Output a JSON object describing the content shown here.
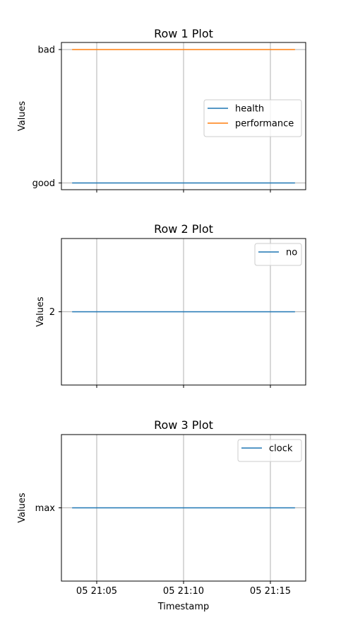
{
  "figure": {
    "xlabel": "Timestamp",
    "xticks": [
      "05 21:05",
      "05 21:10",
      "05 21:15"
    ]
  },
  "chart_data": [
    {
      "type": "line",
      "title": "Row 1 Plot",
      "ylabel": "Values",
      "y_categories": [
        "good",
        "bad"
      ],
      "x_range": [
        "21:03:35",
        "21:16:25"
      ],
      "xticks": [
        "05 21:05",
        "05 21:10",
        "05 21:15"
      ],
      "grid": true,
      "legend_position": "center-right",
      "series": [
        {
          "name": "health",
          "color": "#1f77b4",
          "x": [
            "21:03:35",
            "21:16:25"
          ],
          "y": [
            "good",
            "good"
          ]
        },
        {
          "name": "performance",
          "color": "#ff7f0e",
          "x": [
            "21:03:35",
            "21:16:25"
          ],
          "y": [
            "bad",
            "bad"
          ]
        }
      ]
    },
    {
      "type": "line",
      "title": "Row 2 Plot",
      "ylabel": "Values",
      "y_categories": [
        "2"
      ],
      "x_range": [
        "21:03:35",
        "21:16:25"
      ],
      "xticks": [
        "05 21:05",
        "05 21:10",
        "05 21:15"
      ],
      "grid": true,
      "legend_position": "top-right",
      "series": [
        {
          "name": "no",
          "color": "#1f77b4",
          "x": [
            "21:03:35",
            "21:16:25"
          ],
          "y": [
            "2",
            "2"
          ]
        }
      ]
    },
    {
      "type": "line",
      "title": "Row 3 Plot",
      "ylabel": "Values",
      "y_categories": [
        "max"
      ],
      "x_range": [
        "21:03:35",
        "21:16:25"
      ],
      "xticks": [
        "05 21:05",
        "05 21:10",
        "05 21:15"
      ],
      "grid": true,
      "legend_position": "top-right",
      "series": [
        {
          "name": "clock",
          "color": "#1f77b4",
          "x": [
            "21:03:35",
            "21:16:25"
          ],
          "y": [
            "max",
            "max"
          ]
        }
      ]
    }
  ]
}
